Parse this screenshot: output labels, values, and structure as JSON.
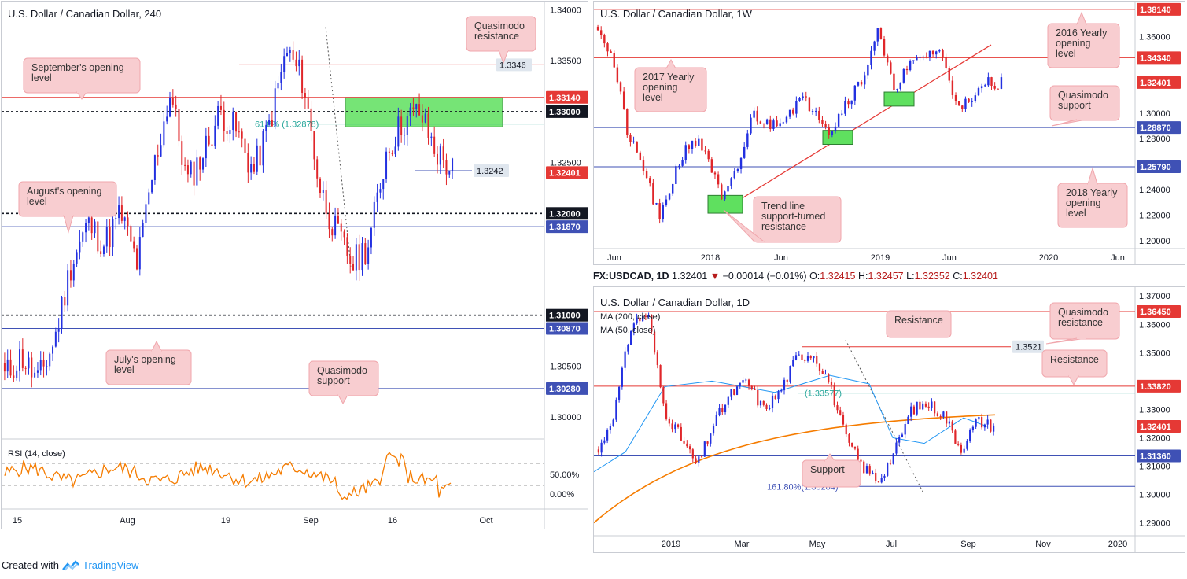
{
  "footer": {
    "created_with": "Created with",
    "brand": "TradingView"
  },
  "daily_header": {
    "symbol": "FX:USDCAD, 1D",
    "last": "1.32401",
    "arrow": "▼",
    "change": "−0.00014 (−0.01%)",
    "o_label": "O:",
    "o": "1.32415",
    "h_label": "H:",
    "h": "1.32457",
    "l_label": "L:",
    "l": "1.32352",
    "c_label": "C:",
    "c": "1.32401"
  },
  "colors": {
    "up": "#2230e0",
    "down": "#e0262a",
    "resistance": "#e53935",
    "support": "#3f51b5",
    "zone": "#5fe05f",
    "rsi": "#f57c00",
    "ma200": "#f57c00",
    "ma50": "#2196f3",
    "callout_bg": "#f8cdd0",
    "callout_border": "#f0a6ac"
  },
  "chart_data": [
    {
      "type": "candlestick",
      "title": "U.S. Dollar / Canadian Dollar, 240",
      "ylim": [
        1.298,
        1.3405
      ],
      "y_ticks": [
        "1.34000",
        "1.33500",
        "1.32500",
        "1.30500",
        "1.30000"
      ],
      "x_ticks": [
        "15",
        "Aug",
        "19",
        "Sep",
        "16",
        "Oct"
      ],
      "levels": [
        {
          "value": 1.3346,
          "label": "1.3346",
          "kind": "quasimodo-resistance"
        },
        {
          "value": 1.3314,
          "label": "1.33140",
          "kind": "resistance"
        },
        {
          "value": 1.33,
          "label": "1.33000",
          "kind": "round"
        },
        {
          "value": 1.3242,
          "label": "1.3242",
          "kind": "marker"
        },
        {
          "value": 1.32401,
          "label": "1.32401",
          "kind": "price"
        },
        {
          "value": 1.32,
          "label": "1.32000",
          "kind": "round"
        },
        {
          "value": 1.3187,
          "label": "1.31870",
          "kind": "support"
        },
        {
          "value": 1.31,
          "label": "1.31000",
          "kind": "round"
        },
        {
          "value": 1.3087,
          "label": "1.30870",
          "kind": "support"
        },
        {
          "value": 1.3028,
          "label": "1.30280",
          "kind": "support"
        }
      ],
      "fib_label": "61.8% (1.32878)",
      "annotations": [
        "Quasimodo resistance",
        "September's opening level",
        "August's opening level",
        "July's opening level",
        "Quasimodo support"
      ],
      "rsi": {
        "label": "RSI (14, close)",
        "ticks": [
          "50.00%",
          "0.00%"
        ]
      }
    },
    {
      "type": "candlestick",
      "title": "U.S. Dollar / Canadian Dollar, 1W",
      "ylim": [
        1.195,
        1.385
      ],
      "y_ticks": [
        "1.36000",
        "1.30000",
        "1.28000",
        "1.24000",
        "1.22000",
        "1.20000"
      ],
      "x_ticks": [
        "Jun",
        "2018",
        "Jun",
        "2019",
        "Jun",
        "2020",
        "Jun"
      ],
      "levels": [
        {
          "value": 1.3814,
          "label": "1.38140",
          "kind": "resistance"
        },
        {
          "value": 1.3434,
          "label": "1.34340",
          "kind": "resistance"
        },
        {
          "value": 1.32401,
          "label": "1.32401",
          "kind": "price"
        },
        {
          "value": 1.2887,
          "label": "1.28870",
          "kind": "support"
        },
        {
          "value": 1.2579,
          "label": "1.25790",
          "kind": "support"
        }
      ],
      "annotations": [
        "2016 Yearly opening level",
        "2017 Yearly opening level",
        "Quasimodo support",
        "2018 Yearly opening level",
        "Trend line support-turned resistance"
      ]
    },
    {
      "type": "candlestick",
      "title": "U.S. Dollar / Canadian Dollar, 1D",
      "ylim": [
        1.286,
        1.372
      ],
      "y_ticks": [
        "1.37000",
        "1.36000",
        "1.35000",
        "1.33000",
        "1.32000",
        "1.31000",
        "1.30000",
        "1.29000"
      ],
      "x_ticks": [
        "2019",
        "Mar",
        "May",
        "Jul",
        "Sep",
        "Nov",
        "2020"
      ],
      "levels": [
        {
          "value": 1.3645,
          "label": "1.36450",
          "kind": "resistance"
        },
        {
          "value": 1.3521,
          "label": "1.3521",
          "kind": "quasimodo-resistance"
        },
        {
          "value": 1.3382,
          "label": "1.33820",
          "kind": "resistance"
        },
        {
          "value": 1.3358,
          "label": "1.33577",
          "kind": "fib"
        },
        {
          "value": 1.32401,
          "label": "1.32401",
          "kind": "price"
        },
        {
          "value": 1.3136,
          "label": "1.31360",
          "kind": "support"
        },
        {
          "value": 1.3028,
          "label": "1.30284",
          "kind": "fib-ext"
        }
      ],
      "fib_label": "(1.33577)",
      "ext_label": "161.80%(1.30284)",
      "ma_labels": [
        "MA (200, close)",
        "MA (50, close)"
      ],
      "annotations": [
        "Resistance",
        "Quasimodo resistance",
        "Resistance",
        "Support"
      ]
    }
  ]
}
